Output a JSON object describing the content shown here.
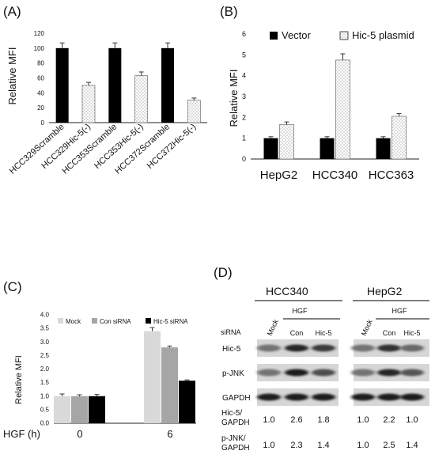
{
  "panels": {
    "A": {
      "label": "(A)",
      "chart_data": {
        "type": "bar",
        "ylabel": "Relative MFI",
        "ylim": [
          0,
          120
        ],
        "yticks": [
          0,
          20,
          40,
          60,
          80,
          100,
          120
        ],
        "categories": [
          "HCC329Scramble",
          "HCC329Hic-5(-)",
          "HCC353Scramble",
          "HCC353Hic-5(-)",
          "HCC372Scramble",
          "HCC372Hic-5(-)"
        ],
        "values": [
          100,
          50,
          100,
          63,
          100,
          30
        ],
        "errors": [
          7,
          4,
          7,
          5,
          7,
          3
        ],
        "fills": [
          "solid",
          "dotted",
          "solid",
          "dotted",
          "solid",
          "dotted"
        ]
      }
    },
    "B": {
      "label": "(B)",
      "chart_data": {
        "type": "bar",
        "ylabel": "Relative MFI",
        "ylim": [
          0,
          6
        ],
        "yticks": [
          0,
          1,
          2,
          3,
          4,
          5,
          6
        ],
        "categories": [
          "HepG2",
          "HCC340",
          "HCC363"
        ],
        "series": [
          {
            "name": "Vector",
            "values": [
              1.0,
              1.0,
              1.0
            ],
            "errors": [
              0.07,
              0.07,
              0.07
            ],
            "fill": "solid"
          },
          {
            "name": "Hic-5 plasmid",
            "values": [
              1.65,
              4.75,
              2.05
            ],
            "errors": [
              0.13,
              0.3,
              0.13
            ],
            "fill": "dotted"
          }
        ],
        "legend": "top"
      }
    },
    "C": {
      "label": "(C)",
      "chart_data": {
        "type": "bar",
        "ylabel": "Relative MFI",
        "ylim": [
          0,
          4
        ],
        "yticks": [
          "0.0",
          "0.5",
          "1.0",
          "1.5",
          "2.0",
          "2.5",
          "3.0",
          "3.5",
          "4.0"
        ],
        "xlabel": "HGF (h)",
        "categories": [
          "0",
          "6"
        ],
        "series": [
          {
            "name": "Mock",
            "values": [
              1.0,
              3.4
            ],
            "errors": [
              0.08,
              0.13
            ],
            "color": "#d9d9d9"
          },
          {
            "name": "Con siRNA",
            "values": [
              1.0,
              2.8
            ],
            "errors": [
              0.05,
              0.05
            ],
            "color": "#a6a6a6"
          },
          {
            "name": "Hic-5 siRNA",
            "values": [
              1.0,
              1.57
            ],
            "errors": [
              0.06,
              0.03
            ],
            "color": "#000000"
          }
        ],
        "legend": "top"
      }
    },
    "D": {
      "label": "(D)",
      "cell_lines": [
        "HCC340",
        "HepG2"
      ],
      "treatment": "HGF",
      "row_header": "siRNA",
      "lanes": [
        "Mock",
        "Con",
        "Hic-5"
      ],
      "blots": [
        "Hic-5",
        "p-JNK",
        "GAPDH"
      ],
      "ratio_rows": [
        {
          "label1": "Hic-5/",
          "label2": "GAPDH",
          "values": [
            [
              "1.0",
              "2.6",
              "1.8"
            ],
            [
              "1.0",
              "2.2",
              "1.0"
            ]
          ]
        },
        {
          "label1": "p-JNK/",
          "label2": "GAPDH",
          "values": [
            [
              "1.0",
              "2.3",
              "1.4"
            ],
            [
              "1.0",
              "2.5",
              "1.4"
            ]
          ]
        }
      ],
      "band_intensity": {
        "Hic-5": [
          [
            0.45,
            0.85,
            0.75
          ],
          [
            0.45,
            0.8,
            0.5
          ]
        ],
        "p-JNK": [
          [
            0.45,
            0.9,
            0.65
          ],
          [
            0.45,
            0.85,
            0.6
          ]
        ],
        "GAPDH": [
          [
            0.9,
            0.9,
            0.9
          ],
          [
            0.9,
            0.9,
            0.9
          ]
        ]
      }
    }
  }
}
